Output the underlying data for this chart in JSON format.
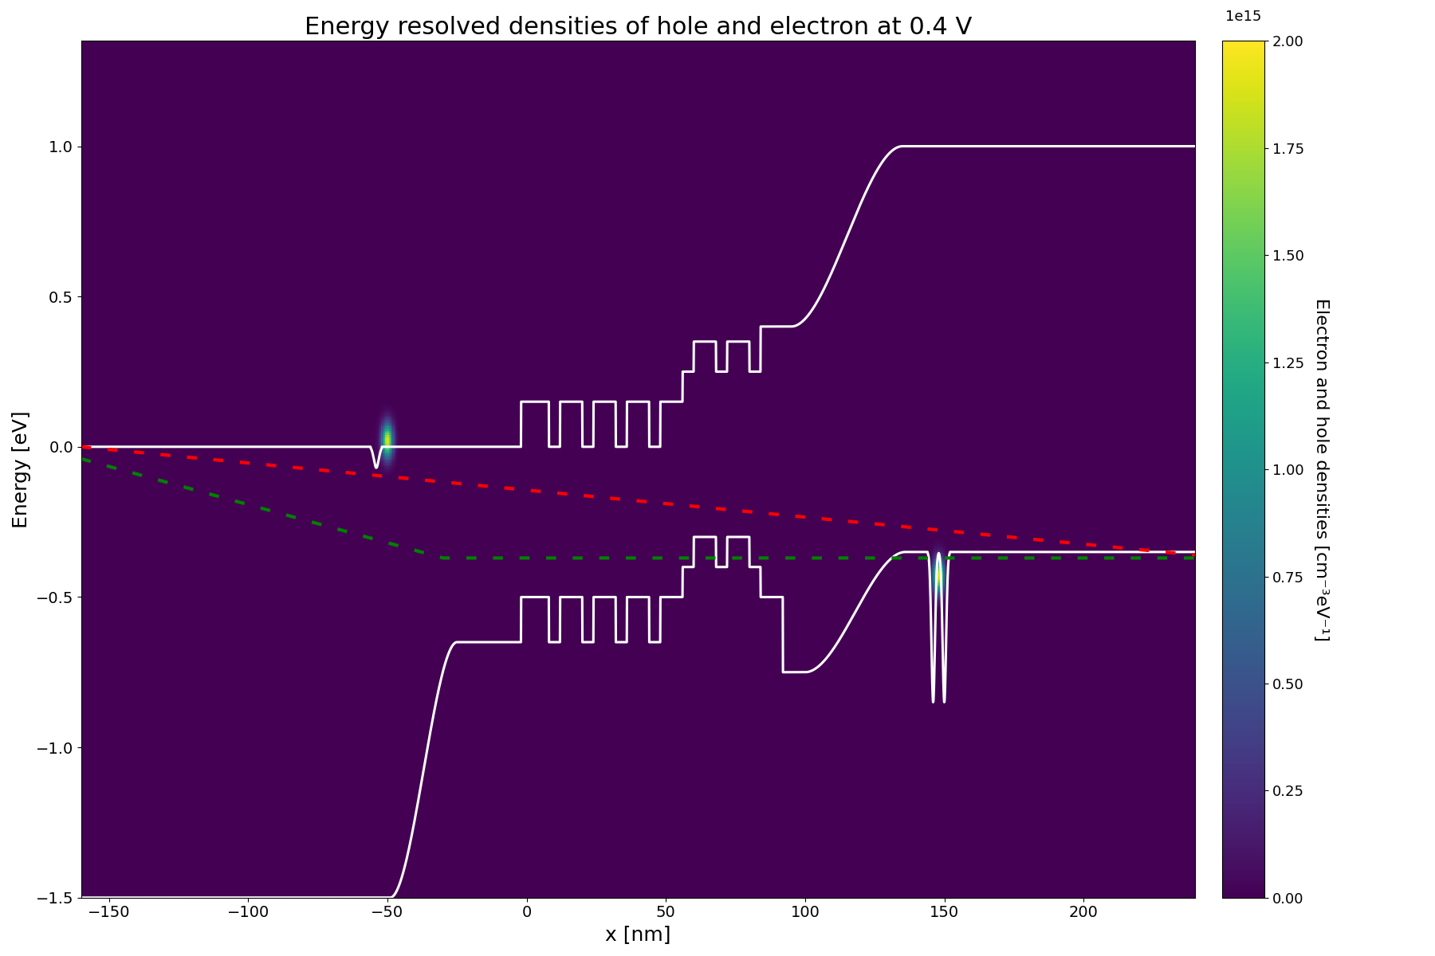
{
  "title": "Energy resolved densities of hole and electron at 0.4 V",
  "xlabel": "x [nm]",
  "ylabel": "Energy [eV]",
  "colorbar_label": "Electron and hole densities [cm⁻³eV⁻¹]",
  "colorbar_max": 2.0,
  "xlim": [
    -160,
    240
  ],
  "ylim": [
    -1.5,
    1.35
  ],
  "figsize": [
    18.0,
    12.0
  ],
  "dpi": 100,
  "x_ticks": [
    -150,
    -100,
    -50,
    0,
    50,
    100,
    150,
    200
  ],
  "y_ticks": [
    -1.5,
    -1.0,
    -0.5,
    0.0,
    0.5,
    1.0
  ],
  "title_fontsize": 22,
  "axis_fontsize": 18,
  "tick_fontsize": 14,
  "cbar_tick_fontsize": 13,
  "cbar_label_fontsize": 16,
  "line_lw": 2.2,
  "dot_lw": 3.0
}
